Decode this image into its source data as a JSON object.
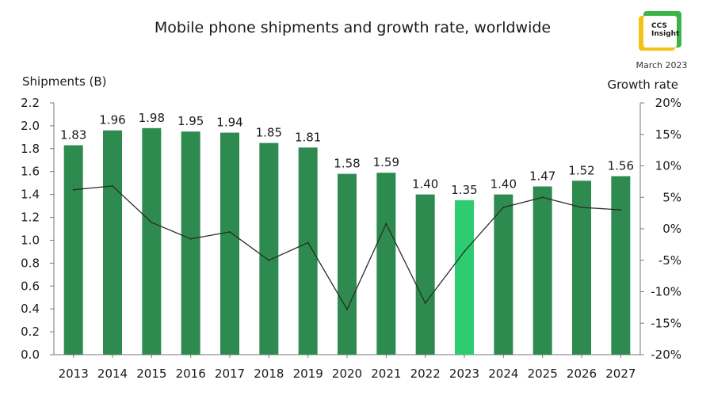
{
  "brand": {
    "logo_line1": "CCS",
    "logo_line2": "Insight",
    "date": "March 2023",
    "colors": {
      "green": "#3bb54a",
      "yellow": "#f2c314"
    }
  },
  "chart_data": {
    "type": "bar",
    "title": "Mobile phone shipments and growth rate, worldwide",
    "categories": [
      "2013",
      "2014",
      "2015",
      "2016",
      "2017",
      "2018",
      "2019",
      "2020",
      "2021",
      "2022",
      "2023",
      "2024",
      "2025",
      "2026",
      "2027"
    ],
    "series": [
      {
        "name": "Shipments (B)",
        "type": "bar",
        "axis": "left",
        "values": [
          1.83,
          1.96,
          1.98,
          1.95,
          1.94,
          1.85,
          1.81,
          1.58,
          1.59,
          1.4,
          1.35,
          1.4,
          1.47,
          1.52,
          1.56
        ],
        "labels": [
          "1.83",
          "1.96",
          "1.98",
          "1.95",
          "1.94",
          "1.85",
          "1.81",
          "1.58",
          "1.59",
          "1.40",
          "1.35",
          "1.40",
          "1.47",
          "1.52",
          "1.56"
        ],
        "color": "#2e8b50",
        "highlight_index": 10,
        "highlight_color": "#2ecc71"
      },
      {
        "name": "Growth rate",
        "type": "line",
        "axis": "right",
        "values": [
          6.2,
          6.8,
          1.0,
          -1.6,
          -0.5,
          -5.0,
          -2.2,
          -12.8,
          0.8,
          -11.8,
          -3.6,
          3.4,
          5.0,
          3.4,
          3.0
        ],
        "color": "#2b2b2b"
      }
    ],
    "ylabel": "Shipments (B)",
    "y2label": "Growth rate",
    "ylim": [
      0,
      2.2
    ],
    "y_ticks": [
      "0.0",
      "0.2",
      "0.4",
      "0.6",
      "0.8",
      "1.0",
      "1.2",
      "1.4",
      "1.6",
      "1.8",
      "2.0",
      "2.2"
    ],
    "y2lim": [
      -20,
      20
    ],
    "y2_ticks": [
      "-20%",
      "-15%",
      "-10%",
      "-5%",
      "0%",
      "5%",
      "10%",
      "15%",
      "20%"
    ],
    "grid": false,
    "legend": "none"
  }
}
